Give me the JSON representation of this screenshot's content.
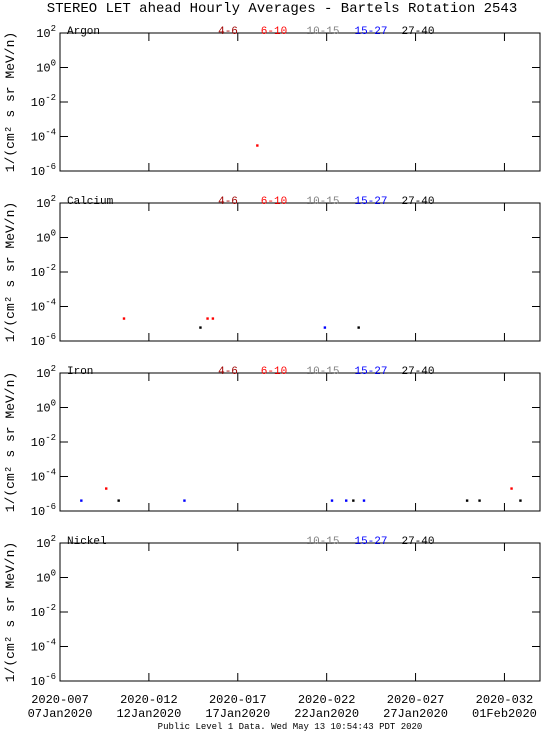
{
  "title": "STEREO LET ahead Hourly Averages - Bartels Rotation 2543",
  "footer": "Public Level 1 Data. Wed May 13 10:54:43 PDT 2020",
  "chart_data": [
    {
      "type": "scatter",
      "label": "Argon",
      "log_y": true,
      "y_label": "1/(cm² s sr MeV/n)",
      "xlim": [
        7,
        34
      ],
      "ylim": [
        1e-06,
        100
      ],
      "xticks": [
        {
          "value": 7,
          "label": "2020-007",
          "date": "07Jan2020"
        },
        {
          "value": 12,
          "label": "2020-012",
          "date": "12Jan2020"
        },
        {
          "value": 17,
          "label": "2020-017",
          "date": "17Jan2020"
        },
        {
          "value": 22,
          "label": "2020-022",
          "date": "22Jan2020"
        },
        {
          "value": 27,
          "label": "2020-027",
          "date": "27Jan2020"
        },
        {
          "value": 32,
          "label": "2020-032",
          "date": "01Feb2020"
        }
      ],
      "yticks": [
        {
          "value": 100,
          "label": "10",
          "exponent": "2"
        },
        {
          "value": 1,
          "label": "10",
          "exponent": "0"
        },
        {
          "value": 0.01,
          "label": "10",
          "exponent": "-2"
        },
        {
          "value": 0.0001,
          "label": "10",
          "exponent": "-4"
        },
        {
          "value": 1e-06,
          "label": "10",
          "exponent": "-6"
        }
      ],
      "series": [
        {
          "name": "4-6",
          "color": "#a00000",
          "x": [],
          "values": []
        },
        {
          "name": "6-10",
          "color": "#ff0000",
          "x": [
            18.1
          ],
          "values": [
            3e-05
          ]
        },
        {
          "name": "10-15",
          "color": "#808080",
          "x": [],
          "values": []
        },
        {
          "name": "15-27",
          "color": "#0000ff",
          "x": [],
          "values": []
        },
        {
          "name": "27-40",
          "color": "#000000",
          "x": [],
          "values": []
        }
      ]
    },
    {
      "type": "scatter",
      "label": "Calcium",
      "log_y": true,
      "y_label": "1/(cm² s sr MeV/n)",
      "xlim": [
        7,
        34
      ],
      "ylim": [
        1e-06,
        100
      ],
      "xticks": [
        {
          "value": 7,
          "label": "2020-007",
          "date": "07Jan2020"
        },
        {
          "value": 12,
          "label": "2020-012",
          "date": "12Jan2020"
        },
        {
          "value": 17,
          "label": "2020-017",
          "date": "17Jan2020"
        },
        {
          "value": 22,
          "label": "2020-022",
          "date": "22Jan2020"
        },
        {
          "value": 27,
          "label": "2020-027",
          "date": "27Jan2020"
        },
        {
          "value": 32,
          "label": "2020-032",
          "date": "01Feb2020"
        }
      ],
      "yticks": [
        {
          "value": 100,
          "label": "10",
          "exponent": "2"
        },
        {
          "value": 1,
          "label": "10",
          "exponent": "0"
        },
        {
          "value": 0.01,
          "label": "10",
          "exponent": "-2"
        },
        {
          "value": 0.0001,
          "label": "10",
          "exponent": "-4"
        },
        {
          "value": 1e-06,
          "label": "10",
          "exponent": "-6"
        }
      ],
      "series": [
        {
          "name": "4-6",
          "color": "#a00000",
          "x": [],
          "values": []
        },
        {
          "name": "6-10",
          "color": "#ff0000",
          "x": [
            10.6,
            15.3,
            15.6
          ],
          "values": [
            2e-05,
            2e-05,
            2e-05
          ]
        },
        {
          "name": "10-15",
          "color": "#808080",
          "x": [],
          "values": []
        },
        {
          "name": "15-27",
          "color": "#0000ff",
          "x": [
            21.9
          ],
          "values": [
            6e-06
          ]
        },
        {
          "name": "27-40",
          "color": "#000000",
          "x": [
            14.9,
            23.8
          ],
          "values": [
            6e-06,
            6e-06
          ]
        }
      ]
    },
    {
      "type": "scatter",
      "label": "Iron",
      "log_y": true,
      "y_label": "1/(cm² s sr MeV/n)",
      "xlim": [
        7,
        34
      ],
      "ylim": [
        1e-06,
        100
      ],
      "xticks": [
        {
          "value": 7,
          "label": "2020-007",
          "date": "07Jan2020"
        },
        {
          "value": 12,
          "label": "2020-012",
          "date": "12Jan2020"
        },
        {
          "value": 17,
          "label": "2020-017",
          "date": "17Jan2020"
        },
        {
          "value": 22,
          "label": "2020-022",
          "date": "22Jan2020"
        },
        {
          "value": 27,
          "label": "2020-027",
          "date": "27Jan2020"
        },
        {
          "value": 32,
          "label": "2020-032",
          "date": "01Feb2020"
        }
      ],
      "yticks": [
        {
          "value": 100,
          "label": "10",
          "exponent": "2"
        },
        {
          "value": 1,
          "label": "10",
          "exponent": "0"
        },
        {
          "value": 0.01,
          "label": "10",
          "exponent": "-2"
        },
        {
          "value": 0.0001,
          "label": "10",
          "exponent": "-4"
        },
        {
          "value": 1e-06,
          "label": "10",
          "exponent": "-6"
        }
      ],
      "series": [
        {
          "name": "4-6",
          "color": "#a00000",
          "x": [],
          "values": []
        },
        {
          "name": "6-10",
          "color": "#ff0000",
          "x": [
            9.6,
            32.4
          ],
          "values": [
            2e-05,
            2e-05
          ]
        },
        {
          "name": "10-15",
          "color": "#808080",
          "x": [],
          "values": []
        },
        {
          "name": "15-27",
          "color": "#0000ff",
          "x": [
            8.2,
            14.0,
            22.3,
            23.1,
            24.1
          ],
          "values": [
            4e-06,
            4e-06,
            4e-06,
            4e-06,
            4e-06
          ]
        },
        {
          "name": "27-40",
          "color": "#000000",
          "x": [
            10.3,
            23.5,
            29.9,
            30.6,
            32.9
          ],
          "values": [
            4e-06,
            4e-06,
            4e-06,
            4e-06,
            4e-06
          ]
        }
      ]
    },
    {
      "type": "scatter",
      "label": "Nickel",
      "log_y": true,
      "y_label": "1/(cm² s sr MeV/n)",
      "xlim": [
        7,
        34
      ],
      "ylim": [
        1e-06,
        100
      ],
      "xticks": [
        {
          "value": 7,
          "label": "2020-007",
          "date": "07Jan2020"
        },
        {
          "value": 12,
          "label": "2020-012",
          "date": "12Jan2020"
        },
        {
          "value": 17,
          "label": "2020-017",
          "date": "17Jan2020"
        },
        {
          "value": 22,
          "label": "2020-022",
          "date": "22Jan2020"
        },
        {
          "value": 27,
          "label": "2020-027",
          "date": "27Jan2020"
        },
        {
          "value": 32,
          "label": "2020-032",
          "date": "01Feb2020"
        }
      ],
      "yticks": [
        {
          "value": 100,
          "label": "10",
          "exponent": "2"
        },
        {
          "value": 1,
          "label": "10",
          "exponent": "0"
        },
        {
          "value": 0.01,
          "label": "10",
          "exponent": "-2"
        },
        {
          "value": 0.0001,
          "label": "10",
          "exponent": "-4"
        },
        {
          "value": 1e-06,
          "label": "10",
          "exponent": "-6"
        }
      ],
      "series": [
        {
          "name": "10-15",
          "color": "#808080",
          "x": [],
          "values": []
        },
        {
          "name": "15-27",
          "color": "#0000ff",
          "x": [],
          "values": []
        },
        {
          "name": "27-40",
          "color": "#000000",
          "x": [],
          "values": []
        }
      ]
    }
  ]
}
